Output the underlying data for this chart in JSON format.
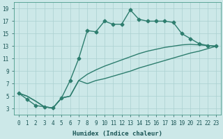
{
  "xlabel": "Humidex (Indice chaleur)",
  "xlim": [
    -0.5,
    23.5
  ],
  "ylim": [
    2,
    20
  ],
  "yticks": [
    3,
    5,
    7,
    9,
    11,
    13,
    15,
    17,
    19
  ],
  "xticks": [
    0,
    1,
    2,
    3,
    4,
    5,
    6,
    7,
    8,
    9,
    10,
    11,
    12,
    13,
    14,
    15,
    16,
    17,
    18,
    19,
    20,
    21,
    22,
    23
  ],
  "bg_color": "#cce8e8",
  "line_color": "#2d7d6e",
  "line1_x": [
    0,
    1,
    2,
    3,
    4,
    5,
    6,
    7,
    8,
    9,
    10,
    11,
    12,
    13,
    14,
    15,
    16,
    17,
    18,
    19,
    20,
    21,
    22,
    23
  ],
  "line1_y": [
    5.5,
    4.5,
    3.5,
    3.3,
    3.1,
    4.7,
    7.5,
    11.0,
    15.5,
    15.3,
    17.0,
    16.5,
    16.5,
    18.8,
    17.3,
    17.0,
    17.0,
    17.0,
    16.8,
    15.0,
    14.2,
    13.4,
    13.1,
    13.0
  ],
  "line2_x": [
    0,
    3,
    23
  ],
  "line2_y": [
    5.5,
    3.3,
    13.0
  ],
  "line3_x": [
    0,
    3,
    23
  ],
  "line3_y": [
    5.5,
    3.3,
    13.0
  ],
  "line2_full_x": [
    0,
    1,
    2,
    3,
    4,
    5,
    6,
    7,
    8,
    9,
    10,
    11,
    12,
    13,
    14,
    15,
    16,
    17,
    18,
    19,
    20,
    21,
    22,
    23
  ],
  "line2_full_y": [
    5.5,
    5.0,
    4.2,
    3.3,
    3.1,
    4.7,
    5.0,
    7.5,
    8.5,
    9.2,
    9.8,
    10.3,
    10.8,
    11.3,
    11.8,
    12.2,
    12.5,
    12.8,
    13.0,
    13.2,
    13.3,
    13.2,
    13.1,
    13.0
  ],
  "line3_full_x": [
    0,
    1,
    2,
    3,
    4,
    5,
    6,
    7,
    8,
    9,
    10,
    11,
    12,
    13,
    14,
    15,
    16,
    17,
    18,
    19,
    20,
    21,
    22,
    23
  ],
  "line3_full_y": [
    5.5,
    5.0,
    4.2,
    3.3,
    3.1,
    4.7,
    5.0,
    7.5,
    7.0,
    7.5,
    7.8,
    8.2,
    8.6,
    9.0,
    9.5,
    9.9,
    10.3,
    10.7,
    11.1,
    11.5,
    11.9,
    12.2,
    12.6,
    13.0
  ],
  "grid_color": "#aad0d0",
  "marker": "D",
  "markersize": 2.5,
  "linewidth": 1.0
}
